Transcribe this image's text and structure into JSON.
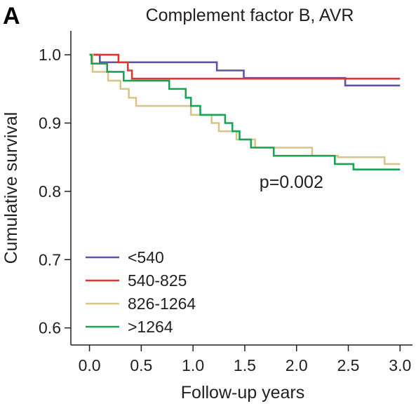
{
  "panel_letter": "A",
  "chart_data": {
    "type": "line",
    "title": "Complement factor B, AVR",
    "xlabel": "Follow-up years",
    "ylabel": "Cumulative survival",
    "xlim": [
      -0.18,
      3.12
    ],
    "ylim": [
      0.575,
      1.035
    ],
    "xticks": [
      0.0,
      0.5,
      1.0,
      1.5,
      2.0,
      2.5,
      3.0
    ],
    "xtick_labels": [
      "0.0",
      "0.5",
      "1.0",
      "1.5",
      "2.0",
      "2.5",
      "3.0"
    ],
    "yticks": [
      1.0,
      0.9,
      0.8,
      0.7,
      0.6
    ],
    "ytick_labels": [
      "1.0",
      "0.9",
      "0.8",
      "0.7",
      "0.6"
    ],
    "grid": false,
    "legend_position": "bottom-left",
    "annotation": {
      "text": "p=0.002",
      "x": 1.95,
      "y": 0.805
    },
    "series": [
      {
        "name": "<540",
        "color": "#5b55a8",
        "points": [
          [
            0,
            1.0
          ],
          [
            0.1,
            1.0
          ],
          [
            0.1,
            0.989
          ],
          [
            1.23,
            0.989
          ],
          [
            1.23,
            0.977
          ],
          [
            1.49,
            0.977
          ],
          [
            1.49,
            0.966
          ],
          [
            2.47,
            0.966
          ],
          [
            2.47,
            0.955
          ],
          [
            3.0,
            0.955
          ]
        ]
      },
      {
        "name": "540-825",
        "color": "#e8322e",
        "points": [
          [
            0,
            1.0
          ],
          [
            0.28,
            1.0
          ],
          [
            0.28,
            0.989
          ],
          [
            0.37,
            0.989
          ],
          [
            0.37,
            0.977
          ],
          [
            0.41,
            0.977
          ],
          [
            0.41,
            0.965
          ],
          [
            3.0,
            0.965
          ]
        ]
      },
      {
        "name": "826-1264",
        "color": "#d6c68a",
        "points": [
          [
            0,
            1.0
          ],
          [
            0.03,
            1.0
          ],
          [
            0.03,
            0.975
          ],
          [
            0.18,
            0.975
          ],
          [
            0.18,
            0.962
          ],
          [
            0.3,
            0.962
          ],
          [
            0.3,
            0.95
          ],
          [
            0.38,
            0.95
          ],
          [
            0.38,
            0.937
          ],
          [
            0.45,
            0.937
          ],
          [
            0.45,
            0.925
          ],
          [
            0.98,
            0.925
          ],
          [
            0.98,
            0.912
          ],
          [
            1.18,
            0.912
          ],
          [
            1.18,
            0.9
          ],
          [
            1.25,
            0.9
          ],
          [
            1.25,
            0.888
          ],
          [
            1.42,
            0.888
          ],
          [
            1.42,
            0.876
          ],
          [
            1.6,
            0.876
          ],
          [
            1.6,
            0.864
          ],
          [
            2.15,
            0.864
          ],
          [
            2.15,
            0.852
          ],
          [
            2.4,
            0.852
          ],
          [
            2.4,
            0.85
          ],
          [
            2.85,
            0.85
          ],
          [
            2.85,
            0.84
          ],
          [
            3.0,
            0.84
          ]
        ]
      },
      {
        "name": ">1264",
        "color": "#1aa354",
        "points": [
          [
            0,
            1.0
          ],
          [
            0.02,
            1.0
          ],
          [
            0.02,
            0.987
          ],
          [
            0.17,
            0.987
          ],
          [
            0.17,
            0.975
          ],
          [
            0.33,
            0.975
          ],
          [
            0.33,
            0.962
          ],
          [
            0.77,
            0.962
          ],
          [
            0.77,
            0.95
          ],
          [
            0.93,
            0.95
          ],
          [
            0.93,
            0.937
          ],
          [
            0.98,
            0.937
          ],
          [
            0.98,
            0.925
          ],
          [
            1.07,
            0.925
          ],
          [
            1.07,
            0.912
          ],
          [
            1.31,
            0.912
          ],
          [
            1.31,
            0.9
          ],
          [
            1.38,
            0.9
          ],
          [
            1.38,
            0.888
          ],
          [
            1.45,
            0.888
          ],
          [
            1.45,
            0.876
          ],
          [
            1.56,
            0.876
          ],
          [
            1.56,
            0.864
          ],
          [
            1.78,
            0.864
          ],
          [
            1.78,
            0.852
          ],
          [
            2.37,
            0.852
          ],
          [
            2.37,
            0.84
          ],
          [
            2.55,
            0.84
          ],
          [
            2.55,
            0.832
          ],
          [
            3.0,
            0.832
          ]
        ]
      }
    ]
  }
}
